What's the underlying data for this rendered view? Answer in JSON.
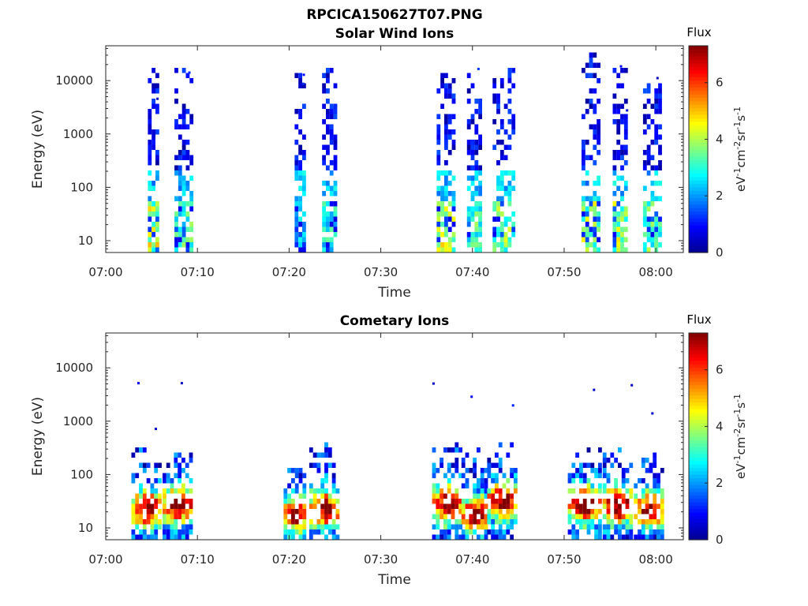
{
  "figure_title": "RPCICA150627T07.PNG",
  "colormap": [
    "#00008f",
    "#0000ff",
    "#0080ff",
    "#00ffff",
    "#80ff80",
    "#ffff00",
    "#ff8000",
    "#ff0000",
    "#800000"
  ],
  "chart_data": [
    {
      "type": "heatmap",
      "title": "Solar Wind Ions",
      "xlabel": "Time",
      "ylabel": "Energy (eV)",
      "xlim": [
        "07:00",
        "08:03"
      ],
      "x_ticks": [
        "07:00",
        "07:10",
        "07:20",
        "07:30",
        "07:40",
        "07:50",
        "08:00"
      ],
      "y_scale": "log",
      "ylim": [
        6,
        45000
      ],
      "y_ticks": [
        "10",
        "100",
        "1000",
        "10000"
      ],
      "colorbar": {
        "title": "Flux",
        "label": "eV-1cm-2sr-1s-1",
        "range": [
          0,
          7.3
        ],
        "ticks": [
          "0",
          "2",
          "4",
          "6"
        ]
      },
      "bursts": [
        {
          "start": "07:04.6",
          "end": "07:05.8",
          "low_flux": 4.6,
          "peak_energy": 25000
        },
        {
          "start": "07:07.5",
          "end": "07:09.2",
          "low_flux": 3.6,
          "peak_energy": 20000
        },
        {
          "start": "07:20.6",
          "end": "07:21.8",
          "low_flux": 2.8,
          "peak_energy": 26000
        },
        {
          "start": "07:23.6",
          "end": "07:24.9",
          "low_flux": 3.2,
          "peak_energy": 18000
        },
        {
          "start": "07:36.1",
          "end": "07:37.8",
          "low_flux": 4.7,
          "peak_energy": 16000
        },
        {
          "start": "07:39.4",
          "end": "07:40.9",
          "low_flux": 3.6,
          "peak_energy": 17000
        },
        {
          "start": "07:42.2",
          "end": "07:44.6",
          "low_flux": 4.1,
          "peak_energy": 18000
        },
        {
          "start": "07:51.9",
          "end": "07:53.6",
          "low_flux": 4.3,
          "peak_energy": 34000
        },
        {
          "start": "07:55.3",
          "end": "07:56.9",
          "low_flux": 4.4,
          "peak_energy": 18000
        },
        {
          "start": "07:58.6",
          "end": "08:00.4",
          "low_flux": 3.8,
          "peak_energy": 17000
        }
      ]
    },
    {
      "type": "heatmap",
      "title": "Cometary Ions",
      "xlabel": "Time",
      "ylabel": "Energy (eV)",
      "xlim": [
        "07:00",
        "08:03"
      ],
      "x_ticks": [
        "07:00",
        "07:10",
        "07:20",
        "07:30",
        "07:40",
        "07:50",
        "08:00"
      ],
      "y_scale": "log",
      "ylim": [
        6,
        45000
      ],
      "y_ticks": [
        "10",
        "100",
        "1000",
        "10000"
      ],
      "colorbar": {
        "title": "Flux",
        "label": "eV-1cm-2sr-1s-1",
        "range": [
          0,
          7.3
        ],
        "ticks": [
          "0",
          "2",
          "4",
          "6"
        ]
      },
      "bursts": [
        {
          "start": "07:02.8",
          "end": "07:06.0",
          "peak_flux": 7.0,
          "peak_energy": 25,
          "top_energy": 400
        },
        {
          "start": "07:06.2",
          "end": "07:09.4",
          "peak_flux": 7.0,
          "peak_energy": 30,
          "top_energy": 350
        },
        {
          "start": "07:19.4",
          "end": "07:21.6",
          "peak_flux": 6.6,
          "peak_energy": 20,
          "top_energy": 150
        },
        {
          "start": "07:22.2",
          "end": "07:25.4",
          "peak_flux": 6.6,
          "peak_energy": 25,
          "top_energy": 450
        },
        {
          "start": "07:35.6",
          "end": "07:38.6",
          "peak_flux": 7.0,
          "peak_energy": 30,
          "top_energy": 450
        },
        {
          "start": "07:38.8",
          "end": "07:41.4",
          "peak_flux": 6.8,
          "peak_energy": 20,
          "top_energy": 350
        },
        {
          "start": "07:41.6",
          "end": "07:44.8",
          "peak_flux": 7.0,
          "peak_energy": 35,
          "top_energy": 450
        },
        {
          "start": "07:50.4",
          "end": "07:54.0",
          "peak_flux": 7.0,
          "peak_energy": 30,
          "top_energy": 400
        },
        {
          "start": "07:54.2",
          "end": "07:57.4",
          "peak_flux": 7.0,
          "peak_energy": 30,
          "top_energy": 350
        },
        {
          "start": "07:57.6",
          "end": "08:00.8",
          "peak_flux": 6.8,
          "peak_energy": 25,
          "top_energy": 300
        }
      ]
    }
  ]
}
